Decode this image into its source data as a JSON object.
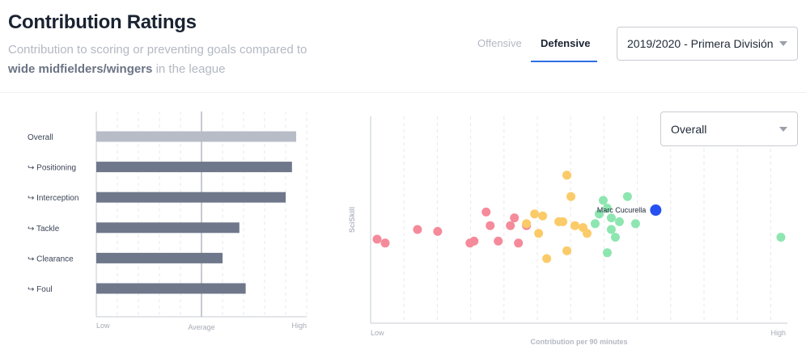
{
  "header": {
    "title": "Contribution Ratings",
    "subtitle_pre": "Contribution to scoring or preventing goals compared to",
    "subtitle_bold": "wide midfielders/wingers",
    "subtitle_post": "in the league"
  },
  "tabs": [
    {
      "label": "Offensive",
      "active": false
    },
    {
      "label": "Defensive",
      "active": true
    }
  ],
  "season_select": {
    "value": "2019/2020 - Primera División"
  },
  "overall_select": {
    "value": "Overall"
  },
  "colors": {
    "accent": "#2f6fe4",
    "bar_overall": "#b7bcc7",
    "bar_sub": "#6f778a",
    "dot_red": "#f58a9a",
    "dot_yellow": "#fbcb69",
    "dot_green": "#8de6b0",
    "dot_highlight": "#2650f0"
  },
  "chart_data": [
    {
      "type": "bar",
      "orientation": "horizontal",
      "categories": [
        "Overall",
        "↪ Positioning",
        "↪ Interception",
        "↪ Tackle",
        "↪ Clearance",
        "↪ Foul"
      ],
      "values": [
        0.95,
        0.93,
        0.9,
        0.68,
        0.6,
        0.71
      ],
      "xlim": [
        0,
        1
      ],
      "average": 0.5,
      "x_tick_labels": [
        "Low",
        "Average",
        "High"
      ],
      "grid": true
    },
    {
      "type": "scatter",
      "xlabel": "Contribution per 90 minutes",
      "ylabel": "SciSkill",
      "x_tick_labels": [
        "Low",
        "High"
      ],
      "xlim": [
        0,
        1
      ],
      "ylim": [
        0,
        1
      ],
      "grid": true,
      "highlight": {
        "label": "Marc Cucurella",
        "x": 0.69,
        "y": 0.55
      },
      "series": [
        {
          "group": "red",
          "points": [
            [
              0.0,
              0.4
            ],
            [
              0.02,
              0.38
            ],
            [
              0.1,
              0.45
            ],
            [
              0.15,
              0.44
            ],
            [
              0.23,
              0.38
            ],
            [
              0.24,
              0.39
            ],
            [
              0.27,
              0.54
            ],
            [
              0.28,
              0.47
            ],
            [
              0.3,
              0.39
            ],
            [
              0.33,
              0.47
            ],
            [
              0.34,
              0.51
            ],
            [
              0.35,
              0.38
            ],
            [
              0.37,
              0.47
            ]
          ]
        },
        {
          "group": "yellow",
          "points": [
            [
              0.37,
              0.48
            ],
            [
              0.39,
              0.53
            ],
            [
              0.4,
              0.43
            ],
            [
              0.41,
              0.52
            ],
            [
              0.42,
              0.3
            ],
            [
              0.45,
              0.49
            ],
            [
              0.46,
              0.49
            ],
            [
              0.47,
              0.73
            ],
            [
              0.47,
              0.34
            ],
            [
              0.48,
              0.62
            ],
            [
              0.49,
              0.47
            ],
            [
              0.51,
              0.46
            ],
            [
              0.52,
              0.43
            ]
          ]
        },
        {
          "group": "green",
          "points": [
            [
              0.54,
              0.48
            ],
            [
              0.55,
              0.53
            ],
            [
              0.56,
              0.6
            ],
            [
              0.57,
              0.56
            ],
            [
              0.57,
              0.33
            ],
            [
              0.58,
              0.45
            ],
            [
              0.58,
              0.51
            ],
            [
              0.59,
              0.41
            ],
            [
              0.6,
              0.49
            ],
            [
              0.62,
              0.62
            ],
            [
              0.64,
              0.48
            ],
            [
              1.0,
              0.41
            ]
          ]
        }
      ]
    }
  ]
}
